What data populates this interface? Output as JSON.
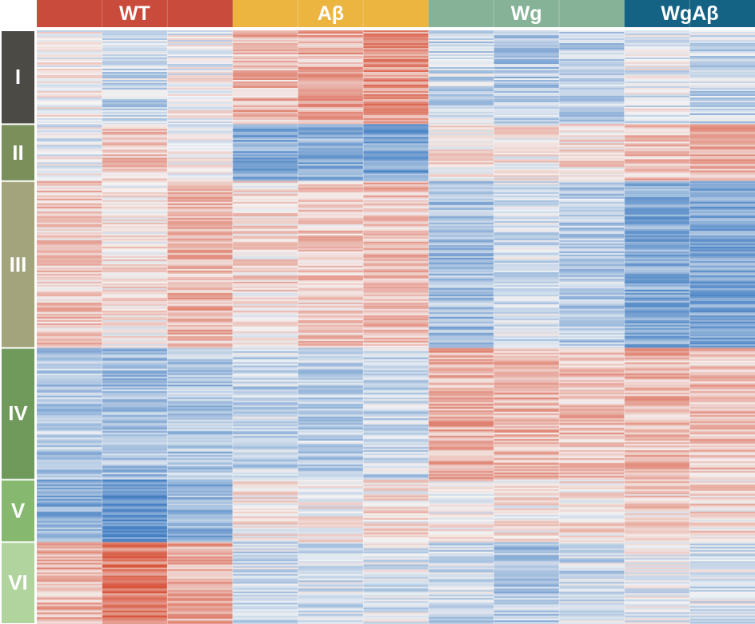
{
  "chart_data": {
    "type": "heatmap",
    "title": "",
    "color_scale": {
      "low": "#3a78c0",
      "mid": "#f5f5f5",
      "high": "#d5452b",
      "range": [
        -1,
        1
      ]
    },
    "column_groups": [
      {
        "name": "WT",
        "color": "#c94b3b",
        "replicates": 3
      },
      {
        "name": "Aβ",
        "color": "#ebb540",
        "replicates": 3
      },
      {
        "name": "Wg",
        "color": "#86b398",
        "replicates": 3
      },
      {
        "name": "WgAβ",
        "color": "#146385",
        "replicates": 2
      }
    ],
    "row_clusters": [
      {
        "name": "I",
        "color": "#4b4a45",
        "share": 0.158,
        "values": [
          0.0,
          -0.25,
          -0.05,
          0.35,
          0.4,
          0.55,
          -0.25,
          -0.35,
          -0.3,
          -0.1,
          -0.25
        ]
      },
      {
        "name": "II",
        "color": "#7a8f5a",
        "share": 0.096,
        "values": [
          -0.1,
          0.3,
          -0.05,
          -0.6,
          -0.55,
          -0.65,
          0.15,
          0.1,
          0.15,
          0.3,
          0.4
        ]
      },
      {
        "name": "III",
        "color": "#a3a47c",
        "share": 0.281,
        "values": [
          0.25,
          0.1,
          0.35,
          0.15,
          0.25,
          0.3,
          -0.45,
          -0.2,
          -0.35,
          -0.6,
          -0.65
        ]
      },
      {
        "name": "IV",
        "color": "#6f9a5c",
        "share": 0.222,
        "values": [
          -0.35,
          -0.45,
          -0.4,
          -0.25,
          -0.3,
          -0.25,
          0.4,
          0.35,
          0.3,
          0.35,
          0.3
        ]
      },
      {
        "name": "V",
        "color": "#86b870",
        "share": 0.105,
        "values": [
          -0.55,
          -0.8,
          -0.5,
          0.1,
          0.05,
          0.1,
          0.05,
          0.1,
          0.1,
          0.2,
          0.15
        ]
      },
      {
        "name": "VI",
        "color": "#b1d49f",
        "share": 0.138,
        "values": [
          0.35,
          0.7,
          0.4,
          -0.2,
          -0.2,
          -0.15,
          -0.25,
          -0.35,
          -0.25,
          -0.1,
          -0.15
        ]
      }
    ]
  }
}
